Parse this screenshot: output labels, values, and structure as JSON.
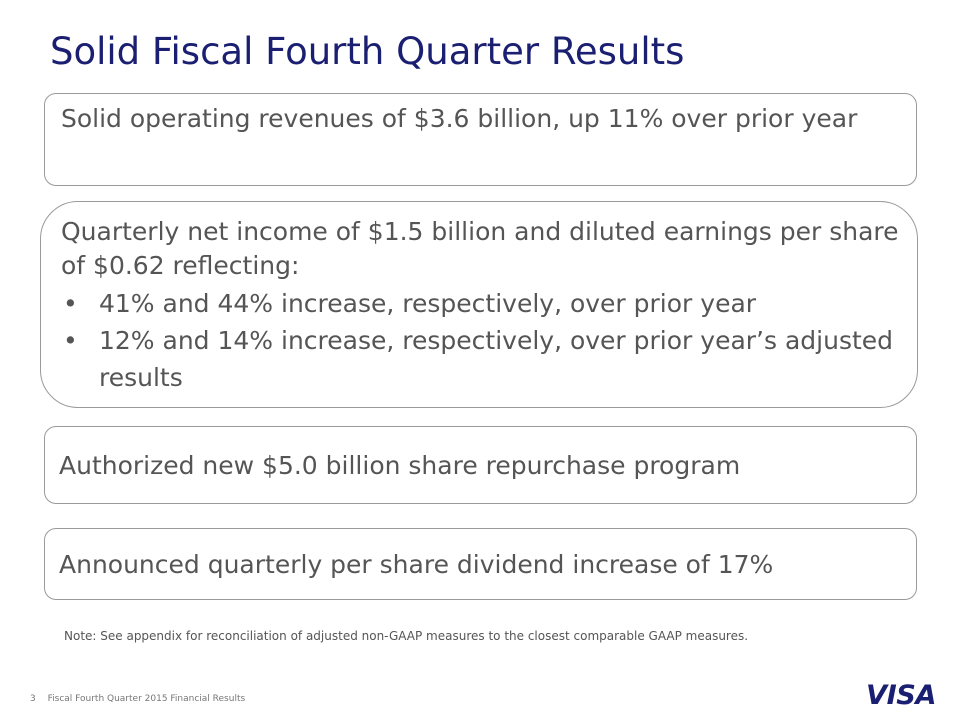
{
  "title": "Solid Fiscal Fourth Quarter Results",
  "highlights": [
    {
      "text": "Solid operating revenues of $3.6 billion, up 11% over prior year"
    },
    {
      "text": "Quarterly net income of $1.5 billion and diluted earnings per share of $0.62 reflecting:",
      "bullets": [
        "41% and 44% increase, respectively, over prior year",
        "12% and 14% increase, respectively, over prior year’s adjusted results"
      ]
    },
    {
      "text": "Authorized new $5.0 billion share repurchase program"
    },
    {
      "text": "Announced quarterly per share dividend increase of 17%"
    }
  ],
  "note": "Note: See appendix for reconciliation of adjusted non-GAAP measures to the closest comparable GAAP measures.",
  "footer": {
    "page_number": "3",
    "text": "Fiscal Fourth Quarter 2015 Financial Results"
  },
  "logo": {
    "text": "VISA",
    "color": "#1a1f71"
  },
  "colors": {
    "title": "#1a1f71",
    "body_text": "#555555",
    "box_border": "#9a9a9a"
  }
}
